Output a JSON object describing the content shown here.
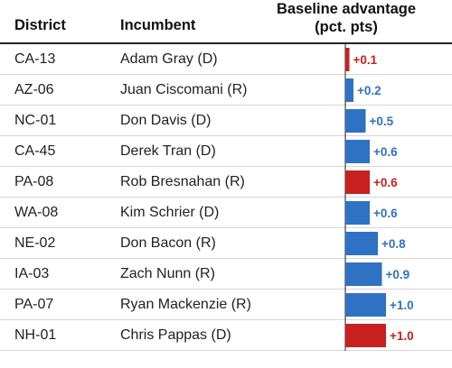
{
  "headers": {
    "district": "District",
    "incumbent": "Incumbent",
    "advantage_line1": "Baseline advantage",
    "advantage_line2": "(pct. pts)"
  },
  "colors": {
    "democrat": "#c8211f",
    "republican": "#2f72c4",
    "axis": "#222222"
  },
  "rows": [
    {
      "district": "CA-13",
      "incumbent": "Adam Gray (D)",
      "label": "+0.1"
    },
    {
      "district": "AZ-06",
      "incumbent": "Juan Ciscomani (R)",
      "label": "+0.2"
    },
    {
      "district": "NC-01",
      "incumbent": "Don Davis (D)",
      "label": "+0.5"
    },
    {
      "district": "CA-45",
      "incumbent": "Derek Tran (D)",
      "label": "+0.6"
    },
    {
      "district": "PA-08",
      "incumbent": "Rob Bresnahan (R)",
      "label": "+0.6"
    },
    {
      "district": "WA-08",
      "incumbent": "Kim Schrier (D)",
      "label": "+0.6"
    },
    {
      "district": "NE-02",
      "incumbent": "Don Bacon (R)",
      "label": "+0.8"
    },
    {
      "district": "IA-03",
      "incumbent": "Zach Nunn (R)",
      "label": "+0.9"
    },
    {
      "district": "PA-07",
      "incumbent": "Ryan Mackenzie (R)",
      "label": "+1.0"
    },
    {
      "district": "NH-01",
      "incumbent": "Chris Pappas (D)",
      "label": "+1.0"
    }
  ],
  "chart_data": {
    "type": "bar",
    "categories": [
      "CA-13",
      "AZ-06",
      "NC-01",
      "CA-45",
      "PA-08",
      "WA-08",
      "NE-02",
      "IA-03",
      "PA-07",
      "NH-01"
    ],
    "values": [
      0.1,
      0.2,
      0.5,
      0.6,
      0.6,
      0.6,
      0.8,
      0.9,
      1.0,
      1.0
    ],
    "bar_colors": [
      "democrat",
      "republican",
      "republican",
      "republican",
      "democrat",
      "republican",
      "republican",
      "republican",
      "republican",
      "democrat"
    ],
    "label_colors": [
      "democrat",
      "republican",
      "republican",
      "republican",
      "democrat",
      "republican",
      "republican",
      "republican",
      "republican",
      "democrat"
    ],
    "title": "Baseline advantage (pct. pts)",
    "orientation": "horizontal",
    "xlim": [
      0,
      1.0
    ],
    "grid": false
  }
}
